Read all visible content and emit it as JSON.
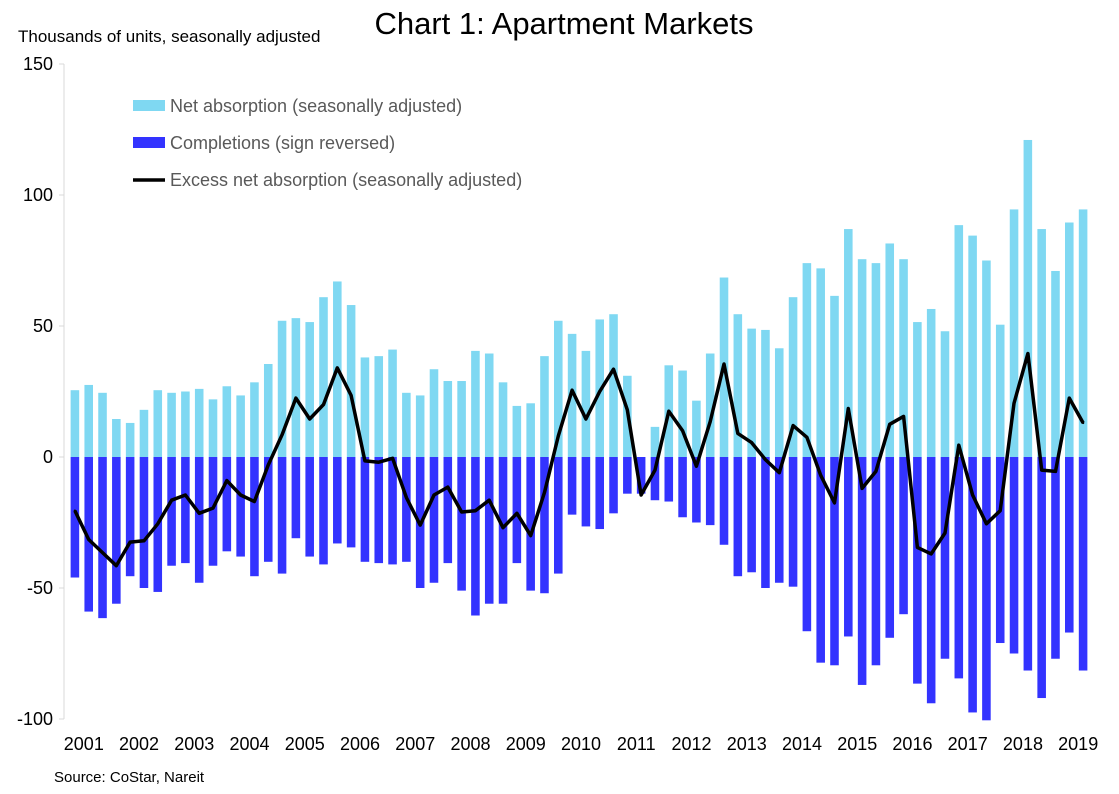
{
  "chart_data": {
    "type": "bar",
    "title": "Chart 1: Apartment Markets",
    "ylabel": "Thousands of units, seasonally adjusted",
    "xlabel": "",
    "ylim": [
      -100,
      150
    ],
    "yticks": [
      "150",
      "100",
      "50",
      "0",
      "-50",
      "-100"
    ],
    "x_tick_labels": [
      "2001",
      "2002",
      "2003",
      "2004",
      "2005",
      "2006",
      "2007",
      "2008",
      "2009",
      "2010",
      "2011",
      "2012",
      "2013",
      "2014",
      "2015",
      "2016",
      "2017",
      "2018",
      "2019"
    ],
    "grid": false,
    "legend_placement": "top-left",
    "colors": {
      "net_absorption": "#7fd8f2",
      "completions": "#3333ff",
      "excess": "#000000"
    },
    "categories": [
      "2001Q1",
      "2001Q2",
      "2001Q3",
      "2001Q4",
      "2002Q1",
      "2002Q2",
      "2002Q3",
      "2002Q4",
      "2003Q1",
      "2003Q2",
      "2003Q3",
      "2003Q4",
      "2004Q1",
      "2004Q2",
      "2004Q3",
      "2004Q4",
      "2005Q1",
      "2005Q2",
      "2005Q3",
      "2005Q4",
      "2006Q1",
      "2006Q2",
      "2006Q3",
      "2006Q4",
      "2007Q1",
      "2007Q2",
      "2007Q3",
      "2007Q4",
      "2008Q1",
      "2008Q2",
      "2008Q3",
      "2008Q4",
      "2009Q1",
      "2009Q2",
      "2009Q3",
      "2009Q4",
      "2010Q1",
      "2010Q2",
      "2010Q3",
      "2010Q4",
      "2011Q1",
      "2011Q2",
      "2011Q3",
      "2011Q4",
      "2012Q1",
      "2012Q2",
      "2012Q3",
      "2012Q4",
      "2013Q1",
      "2013Q2",
      "2013Q3",
      "2013Q4",
      "2014Q1",
      "2014Q2",
      "2014Q3",
      "2014Q4",
      "2015Q1",
      "2015Q2",
      "2015Q3",
      "2015Q4",
      "2016Q1",
      "2016Q2",
      "2016Q3",
      "2016Q4",
      "2017Q1",
      "2017Q2",
      "2017Q3",
      "2017Q4",
      "2018Q1",
      "2018Q2",
      "2018Q3",
      "2018Q4",
      "2019Q1",
      "2019Q2"
    ],
    "series": [
      {
        "name": "Net absorption (seasonally adjusted)",
        "kind": "bar",
        "values": [
          25.5,
          27.5,
          24.5,
          14.5,
          13,
          18,
          25.5,
          24.5,
          25,
          26,
          22,
          27,
          23.5,
          28.5,
          35.5,
          52,
          53,
          51.5,
          61,
          67,
          58,
          38,
          38.5,
          41,
          24.5,
          23.5,
          33.5,
          29,
          29,
          40.5,
          39.5,
          28.5,
          19.5,
          20.5,
          38.5,
          52,
          47,
          40.5,
          52.5,
          54.5,
          31,
          0,
          11.5,
          35,
          33,
          21.5,
          39.5,
          68.5,
          54.5,
          49,
          48.5,
          41.5,
          61,
          74,
          72,
          61.5,
          87,
          75.5,
          74,
          81.5,
          75.5,
          51.5,
          56.5,
          48,
          88.5,
          84.5,
          75,
          50.5,
          94.5,
          121,
          87,
          71,
          89.5,
          94.5
        ]
      },
      {
        "name": "Completions (sign reversed)",
        "kind": "bar",
        "values": [
          -46,
          -59,
          -61.5,
          -56,
          -45.5,
          -50,
          -51.5,
          -41.5,
          -40.5,
          -48,
          -41.5,
          -36,
          -38,
          -45.5,
          -40,
          -44.5,
          -31,
          -38,
          -41,
          -33,
          -34.5,
          -40,
          -40.5,
          -41,
          -40,
          -50,
          -48,
          -40.5,
          -51,
          -60.5,
          -56,
          -56,
          -40.5,
          -51,
          -52,
          -44.5,
          -22,
          -26.5,
          -27.5,
          -21.5,
          -14,
          -14,
          -16.5,
          -17,
          -23,
          -25,
          -26,
          -33.5,
          -45.5,
          -44,
          -50,
          -48,
          -49.5,
          -66.5,
          -78.5,
          -79.5,
          -68.5,
          -87,
          -79.5,
          -69,
          -60,
          -86.5,
          -94,
          -77,
          -84.5,
          -97.5,
          -100.5,
          -71,
          -75,
          -81.5,
          -92,
          -77,
          -67,
          -81.5
        ]
      },
      {
        "name": "Excess net absorption (seasonally adjusted)",
        "kind": "line",
        "values": [
          -20.5,
          -31.5,
          -36.5,
          -41.5,
          -32.5,
          -32,
          -25.5,
          -16.5,
          -14.5,
          -21.5,
          -19.5,
          -9,
          -14.5,
          -17,
          -3,
          8.5,
          22.5,
          14.5,
          20,
          34,
          23.5,
          -1.5,
          -2,
          -0.5,
          -15.5,
          -26,
          -14.5,
          -11.5,
          -21,
          -20.5,
          -16.5,
          -27,
          -21.5,
          -30,
          -13.5,
          8,
          25.5,
          14.5,
          25,
          33.5,
          18,
          -14.5,
          -5,
          17.5,
          10,
          -3.5,
          13.5,
          35.5,
          9,
          5.5,
          -1,
          -6,
          12,
          7.5,
          -7,
          -17.5,
          18.5,
          -12,
          -5.5,
          12.5,
          15.5,
          -34.5,
          -37,
          -29,
          4.5,
          -14.5,
          -25.5,
          -20.5,
          20.5,
          39.5,
          -5,
          -5.5,
          22.5,
          13
        ]
      }
    ]
  },
  "source_note": "Source: CoStar, Nareit"
}
